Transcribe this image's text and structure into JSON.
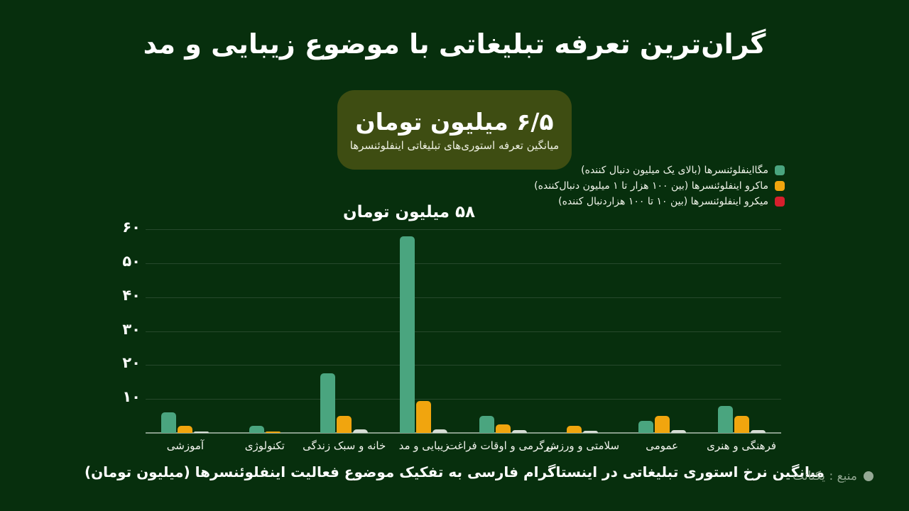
{
  "page": {
    "title": "گران‌ترین تعرفه تبلیغاتی با موضوع زیبایی و مد",
    "background_color": "#072f0d"
  },
  "callout": {
    "value": "۶/۵ میلیون تومان",
    "subtitle": "میانگین تعرفه استوری‌های تبلیغاتی اینفلوئنسرها",
    "background_color": "#3e4d12"
  },
  "chart_data": {
    "type": "bar",
    "title": "میانگین نرخ استوری تبلیغاتی در اینستاگرام فارسی به تفکیک موضوع فعالیت اینفلوئنسرها (میلیون تومان)",
    "unit": "میلیون تومان",
    "annotation": "۵۸ میلیون تومان",
    "annotation_target_category": "زیبایی و مد",
    "grid": true,
    "legend_position": "top-right",
    "ylim": [
      0,
      62
    ],
    "y_ticks": [
      {
        "value": 10,
        "label": "۱۰"
      },
      {
        "value": 20,
        "label": "۲۰"
      },
      {
        "value": 30,
        "label": "۳۰"
      },
      {
        "value": 40,
        "label": "۴۰"
      },
      {
        "value": 50,
        "label": "۵۰"
      },
      {
        "value": 60,
        "label": "۶۰"
      }
    ],
    "categories": [
      "آموزشی",
      "تکنولوژی",
      "خانه و سبک زندگی",
      "زیبایی و مد",
      "سرگرمی و اوقات فراغت",
      "سلامتی و ورزش",
      "عمومی",
      "فرهنگی و هنری"
    ],
    "series": [
      {
        "key": "mega",
        "name": "مگااینفلوئنسرها (بالای یک میلیون دنبال کننده)",
        "legend_color": "#4aa57f",
        "bar_color": "#4aa57f",
        "values": [
          6,
          2,
          17.5,
          58,
          5,
          0,
          3.5,
          8
        ]
      },
      {
        "key": "macro",
        "name": "ماکرو اینفلوئنسرها (بین ۱۰۰ هزار تا ۱ میلیون دنبال‌کننده)",
        "legend_color": "#f1a50e",
        "bar_color": "#f1a50e",
        "values": [
          2,
          0.4,
          5,
          9.5,
          2.5,
          2,
          5,
          5
        ]
      },
      {
        "key": "micro",
        "name": "میکرو اینفلوئنسرها (بین ۱۰ تا ۱۰۰ هزاردنبال کننده)",
        "legend_color": "#d61f2c",
        "bar_color": "#d6ddd5",
        "values": [
          0.5,
          0,
          1,
          1,
          0.8,
          0.7,
          0.8,
          0.8
        ]
      }
    ]
  },
  "footer": {
    "caption": "میانگین نرخ استوری تبلیغاتی در اینستاگرام فارسی به تفکیک موضوع فعالیت اینفلوئنسرها (میلیون تومان)",
    "source": "منبع : یکتانت"
  }
}
